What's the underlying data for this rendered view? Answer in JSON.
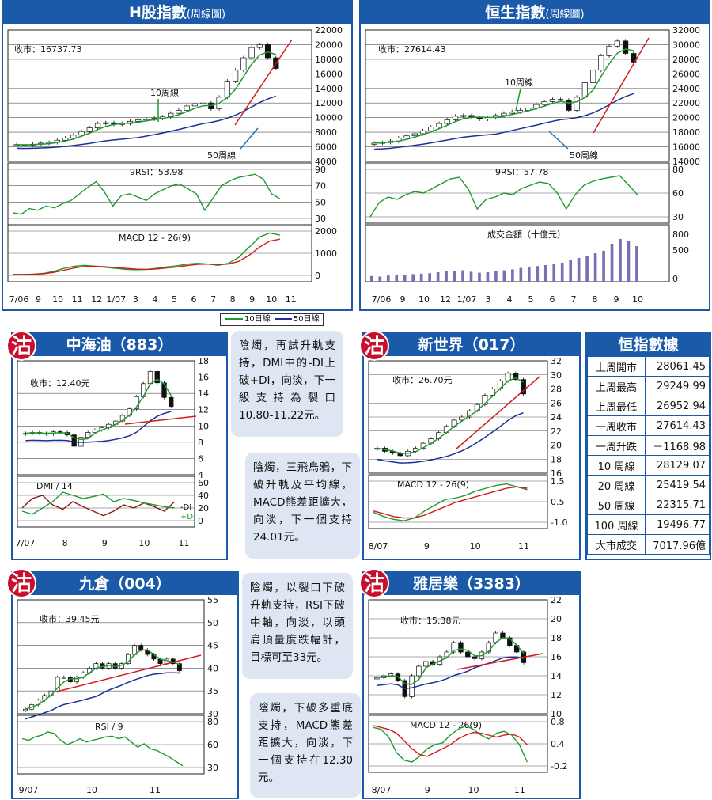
{
  "hshares": {
    "title": "H股指數",
    "subtitle": "(周線圖)",
    "close_label": "收市：16737.73",
    "ma10_label": "10周線",
    "ma50_label": "50周線",
    "rsi_label": "9RSI：53.98",
    "macd_label": "MACD 12 - 26(9)"
  },
  "hsi": {
    "title": "恒生指數",
    "subtitle": "(周線圖)",
    "close_label": "收市：27614.43",
    "ma10_label": "10周線",
    "ma50_label": "50周線",
    "rsi_label": "9RSI：57.78",
    "turnover_label": "成交金額（十億元）"
  },
  "legend": {
    "ma10": "10日線",
    "ma50": "50日線"
  },
  "cnooc": {
    "title": "中海油（883）",
    "badge": "沽",
    "close_label": "收市：12.40元",
    "dmi_label": "DMI / 14",
    "dmi_minus": "-DI",
    "dmi_plus": "+DI",
    "note": "陰燭，再試升軌支持，DMI中的-DI上破+DI，向淡，下一級支持為裂口10.80-11.22元。"
  },
  "nwd": {
    "title": "新世界（017）",
    "badge": "沽",
    "close_label": "收市：26.70元",
    "macd_label": "MACD 12 - 26(9)",
    "note": "陰燭，三飛烏鴉，下破升軌及平均線，MACD熊差距擴大，向淡，下一個支持24.01元。"
  },
  "stats": {
    "title": "恒指數據",
    "rows": [
      {
        "k": "上周開市",
        "v": "28061.45"
      },
      {
        "k": "上周最高",
        "v": "29249.99"
      },
      {
        "k": "上周最低",
        "v": "26952.94"
      },
      {
        "k": "一周收市",
        "v": "27614.43"
      },
      {
        "k": "一周升跌",
        "v": "－1168.98"
      },
      {
        "k": "10 周線",
        "v": "28129.07"
      },
      {
        "k": "20 周線",
        "v": "25419.54"
      },
      {
        "k": "50 周線",
        "v": "22315.71"
      },
      {
        "k": "100 周線",
        "v": "19496.77"
      },
      {
        "k": "大市成交",
        "v": "7017.96億"
      }
    ]
  },
  "wharf": {
    "title": "九倉（004）",
    "badge": "沽",
    "close_label": "收市：39.45元",
    "rsi_label": "RSI / 9",
    "note": "陰燭，以裂口下破升軌支持，RSI下破中軸，向淡，以頭肩頂量度跌幅計，目標可至33元。"
  },
  "agile": {
    "title": "雅居樂（3383）",
    "badge": "沽",
    "close_label": "收市：15.38元",
    "macd_label": "MACD 12 - 26(9)",
    "note": "陰燭，下破多重底支持，MACD熊差距擴大，向淡，下一個支持在12.30元。"
  },
  "chart_data": [
    {
      "id": "hshares",
      "type": "candlestick",
      "ylim": [
        4000,
        22000
      ],
      "yticks": [
        "22000",
        "20000",
        "18000",
        "16000",
        "14000",
        "12000",
        "10000",
        "8000",
        "6000",
        "4000"
      ],
      "xticks": [
        "7/06",
        "9",
        "10",
        "11",
        "12",
        "1/07",
        "3",
        "4",
        "5",
        "6",
        "7",
        "8",
        "9",
        "10",
        "11"
      ],
      "close": [
        6300,
        6250,
        6350,
        6500,
        6600,
        6900,
        7200,
        7600,
        8100,
        8600,
        9200,
        9300,
        9100,
        9200,
        9500,
        9700,
        9800,
        9900,
        10100,
        10600,
        11000,
        11600,
        11900,
        12000,
        11200,
        12800,
        15000,
        16500,
        18200,
        19600,
        20000,
        18200,
        16737.73
      ],
      "rsi": {
        "ylim": [
          30,
          90
        ],
        "yticks": [
          "90",
          "70",
          "50",
          "30"
        ],
        "values": [
          37,
          35,
          42,
          40,
          45,
          43,
          48,
          52,
          60,
          68,
          75,
          62,
          45,
          58,
          60,
          56,
          52,
          60,
          65,
          70,
          72,
          66,
          60,
          40,
          55,
          70,
          76,
          80,
          82,
          84,
          78,
          60,
          53.98
        ]
      },
      "macd": {
        "ylim": [
          0,
          2000
        ],
        "yticks": [
          "2000",
          "1000",
          "0"
        ],
        "macd": [
          50,
          40,
          60,
          100,
          200,
          350,
          450,
          500,
          450,
          400,
          350,
          300,
          280,
          300,
          350,
          420,
          480,
          560,
          600,
          560,
          500,
          600,
          900,
          1400,
          1900,
          2100,
          2000
        ],
        "signal": [
          40,
          45,
          55,
          80,
          150,
          260,
          370,
          440,
          450,
          430,
          390,
          350,
          310,
          300,
          320,
          370,
          420,
          490,
          550,
          560,
          540,
          560,
          700,
          1000,
          1400,
          1700,
          1800
        ]
      }
    },
    {
      "id": "hsi",
      "type": "candlestick",
      "ylim": [
        14000,
        32000
      ],
      "yticks": [
        "32000",
        "30000",
        "28000",
        "26000",
        "24000",
        "22000",
        "20000",
        "18000",
        "16000",
        "14000"
      ],
      "xticks": [
        "7/06",
        "9",
        "10",
        "12",
        "1/07",
        "3",
        "4",
        "5",
        "6",
        "7",
        "8",
        "9",
        "10"
      ],
      "close": [
        16500,
        16600,
        16800,
        17200,
        17500,
        17800,
        18200,
        18700,
        19200,
        19700,
        20200,
        20300,
        20000,
        19800,
        20000,
        20300,
        20600,
        20800,
        21000,
        21300,
        21800,
        22200,
        22500,
        22400,
        21000,
        22800,
        24800,
        26500,
        28500,
        29800,
        30500,
        28800,
        27614.43
      ],
      "rsi": {
        "ylim": [
          30,
          90
        ],
        "yticks": [
          "80",
          "60",
          "30"
        ],
        "values": [
          30,
          48,
          55,
          52,
          58,
          62,
          60,
          66,
          72,
          78,
          80,
          65,
          40,
          52,
          55,
          60,
          58,
          66,
          70,
          74,
          72,
          60,
          40,
          58,
          70,
          75,
          78,
          80,
          82,
          70,
          57.78
        ]
      },
      "turnover": {
        "ylim": [
          0,
          900
        ],
        "yticks": [
          "800",
          "500",
          "0"
        ],
        "values": [
          120,
          110,
          130,
          140,
          150,
          160,
          170,
          180,
          200,
          220,
          230,
          240,
          210,
          190,
          200,
          220,
          240,
          260,
          290,
          310,
          330,
          350,
          370,
          400,
          450,
          500,
          550,
          600,
          650,
          800,
          900,
          850,
          750
        ]
      }
    },
    {
      "id": "cnooc",
      "type": "candlestick",
      "ylim": [
        4,
        18
      ],
      "yticks": [
        "18",
        "16",
        "14",
        "12",
        "10",
        "8",
        "6",
        "4"
      ],
      "xticks": [
        "7/07",
        "8",
        "9",
        "10",
        "11"
      ],
      "close": [
        9.1,
        9.2,
        9.1,
        9.0,
        9.3,
        9.2,
        8.9,
        7.5,
        8.6,
        9.2,
        9.5,
        9.8,
        10.2,
        10.6,
        11.3,
        12.1,
        13.6,
        15.2,
        16.7,
        15.3,
        13.5,
        12.4
      ],
      "dmi": {
        "yticks": [
          "60",
          "40",
          "20",
          "0"
        ],
        "minus_di": [
          20,
          35,
          40,
          25,
          18,
          30,
          22,
          15,
          8,
          15,
          25,
          20,
          28,
          22,
          15,
          30
        ],
        "plus_di": [
          15,
          10,
          20,
          30,
          45,
          40,
          35,
          38,
          42,
          30,
          35,
          32,
          28,
          25,
          22,
          20
        ]
      }
    },
    {
      "id": "nwd",
      "type": "candlestick",
      "ylim": [
        14,
        32
      ],
      "yticks": [
        "32",
        "30",
        "28",
        "26",
        "24",
        "22",
        "20",
        "18",
        "16"
      ],
      "xticks": [
        "8/07",
        "9",
        "10",
        "11"
      ],
      "close": [
        18.0,
        17.5,
        17.2,
        16.8,
        17.5,
        18.0,
        18.8,
        19.5,
        20.5,
        21.5,
        22.5,
        23.0,
        24.0,
        25.0,
        26.5,
        27.5,
        28.8,
        30.0,
        29.0,
        26.7
      ],
      "macd": {
        "yticks": [
          "1.5",
          "0.5",
          "-1.0"
        ],
        "macd": [
          -0.6,
          -0.9,
          -1.1,
          -1.2,
          -1.0,
          -0.5,
          -0.1,
          0.3,
          0.4,
          0.6,
          0.9,
          1.1,
          1.3,
          1.4,
          1.2,
          1.0
        ],
        "signal": [
          -0.5,
          -0.7,
          -0.9,
          -1.0,
          -1.0,
          -0.8,
          -0.5,
          -0.2,
          0.1,
          0.3,
          0.5,
          0.7,
          0.9,
          1.1,
          1.2,
          1.1
        ]
      }
    },
    {
      "id": "wharf",
      "type": "candlestick",
      "ylim": [
        30,
        55
      ],
      "yticks": [
        "55",
        "50",
        "45",
        "40",
        "35",
        "30"
      ],
      "xticks": [
        "9/07",
        "10",
        "11"
      ],
      "close": [
        31,
        32,
        33,
        34,
        35,
        38,
        38,
        37,
        38,
        39,
        40,
        41,
        40,
        41,
        40,
        41,
        43,
        45,
        44,
        43,
        42,
        41,
        42,
        41,
        39.45
      ],
      "rsi": {
        "yticks": [
          "80",
          "60",
          "30"
        ],
        "values": [
          62,
          60,
          64,
          66,
          70,
          68,
          60,
          55,
          58,
          62,
          58,
          60,
          62,
          64,
          65,
          62,
          64,
          58,
          52,
          56,
          50,
          48,
          44,
          40,
          35,
          30
        ]
      }
    },
    {
      "id": "agile",
      "type": "candlestick",
      "ylim": [
        10,
        22
      ],
      "yticks": [
        "22",
        "20",
        "18",
        "16",
        "14",
        "12",
        "10"
      ],
      "xticks": [
        "8/07",
        "9",
        "10",
        "11"
      ],
      "close": [
        13.8,
        14.0,
        14.2,
        13.5,
        11.8,
        14.0,
        15.0,
        15.5,
        15.2,
        16.0,
        16.5,
        17.5,
        16.5,
        16.0,
        15.8,
        16.5,
        17.5,
        18.5,
        18.0,
        17.2,
        16.5,
        15.38
      ],
      "macd": {
        "yticks": [
          "0.8",
          "0.4",
          "-0.2"
        ],
        "macd": [
          0.75,
          0.7,
          0.5,
          0.1,
          -0.1,
          -0.15,
          0.0,
          0.2,
          0.3,
          0.35,
          0.55,
          0.7,
          0.8,
          0.7,
          0.55,
          0.45,
          0.6,
          0.65,
          0.55,
          0.3,
          -0.15
        ],
        "signal": [
          0.8,
          0.75,
          0.7,
          0.6,
          0.4,
          0.2,
          0.05,
          0.0,
          0.1,
          0.2,
          0.3,
          0.45,
          0.55,
          0.62,
          0.6,
          0.55,
          0.5,
          0.55,
          0.58,
          0.5,
          0.3
        ]
      }
    }
  ]
}
